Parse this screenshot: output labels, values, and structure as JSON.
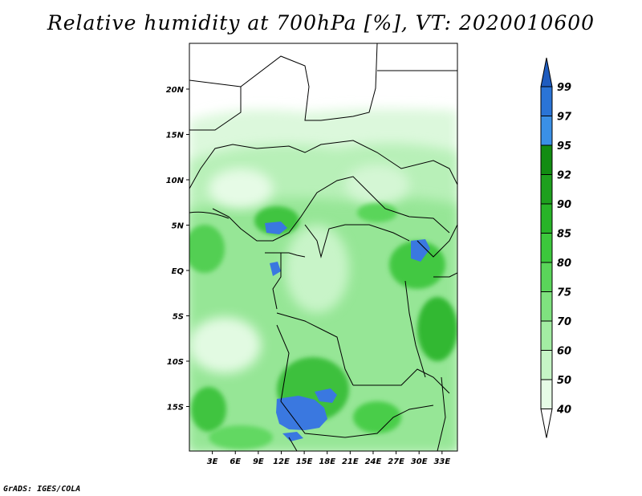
{
  "title": "Relative humidity at 700hPa [%], VT: 2020010600",
  "credit": "GrADS: IGES/COLA",
  "map": {
    "lat_labels": [
      "20N",
      "15N",
      "10N",
      "5N",
      "EQ",
      "5S",
      "10S",
      "15S"
    ],
    "lon_labels": [
      "3E",
      "6E",
      "9E",
      "12E",
      "15E",
      "18E",
      "21E",
      "24E",
      "27E",
      "30E",
      "33E"
    ],
    "lon_range": [
      0,
      35
    ],
    "lat_range": [
      -19.5,
      25
    ]
  },
  "colorbar": {
    "labels": [
      "99",
      "97",
      "95",
      "92",
      "90",
      "85",
      "80",
      "75",
      "70",
      "60",
      "50",
      "40"
    ],
    "colors_bottom_to_top": [
      "#ffffff",
      "#e6fce6",
      "#c6f5c6",
      "#a3eda3",
      "#7fe27f",
      "#5ad55a",
      "#3cc83c",
      "#28b428",
      "#1ea01e",
      "#128c12",
      "#3a90e6",
      "#2a74d6",
      "#1f5cbf"
    ]
  }
}
